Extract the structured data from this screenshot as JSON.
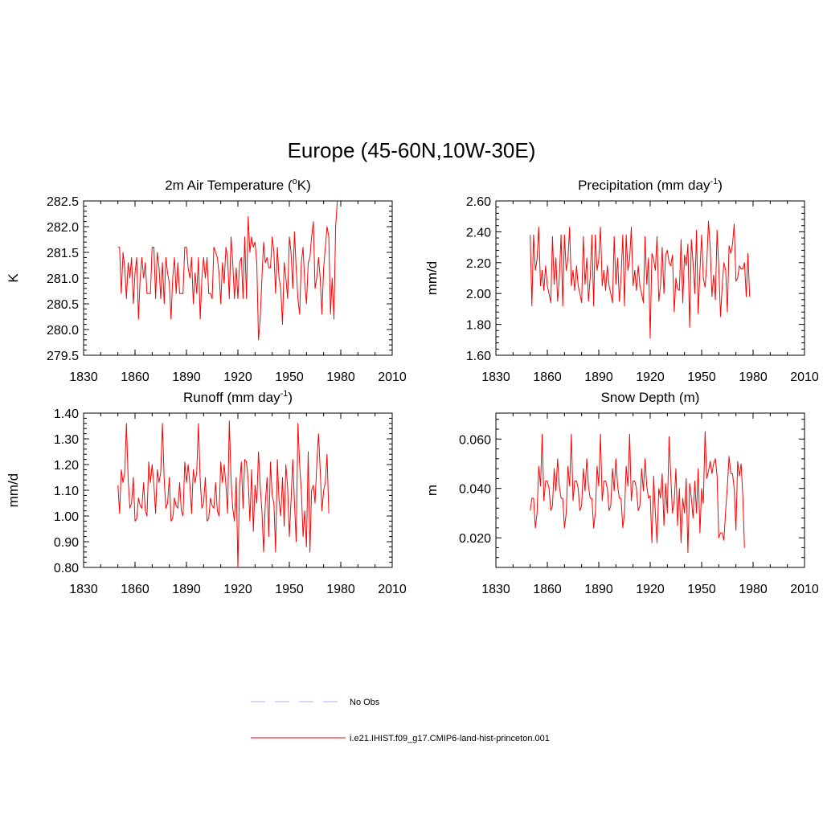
{
  "figure": {
    "title": "Europe (45-60N,10W-30E)"
  },
  "legend": [
    {
      "label": "No Obs",
      "color": "#aab0ff",
      "dash": true
    },
    {
      "label": "i.e21.IHIST.f09_g17.CMIP6-land-hist-princeton.001",
      "color": "#ff0000",
      "dash": false
    }
  ],
  "chart_data": [
    {
      "type": "line",
      "title": "2m Air Temperature (oK)",
      "title_parts": {
        "pre": "2m Air Temperature (",
        "sup": "o",
        "post": "K)"
      },
      "ylabel": "K",
      "xlim": [
        1830,
        2010
      ],
      "ylim": [
        279.5,
        282.5
      ],
      "xticks": [
        "1830",
        "1860",
        "1890",
        "1920",
        "1950",
        "1980",
        "2010"
      ],
      "yticks": [
        "279.5",
        "280.0",
        "280.5",
        "281.0",
        "281.5",
        "282.0",
        "282.5"
      ],
      "series": [
        {
          "color": "#ff0000",
          "x_start": 1850,
          "values": [
            281.6,
            281.6,
            280.7,
            281.5,
            281.2,
            280.6,
            281.3,
            281.0,
            281.4,
            280.5,
            281.1,
            281.4,
            280.2,
            281.0,
            281.4,
            281.0,
            281.3,
            280.7,
            280.7,
            280.7,
            281.6,
            281.6,
            280.6,
            281.5,
            281.2,
            280.6,
            281.3,
            280.5,
            281.4,
            281.1,
            280.9,
            280.2,
            281.0,
            281.4,
            280.7,
            281.3,
            280.7,
            280.7,
            280.7,
            281.6,
            281.6,
            281.2,
            281.0,
            281.4,
            280.5,
            281.1,
            280.7,
            281.4,
            280.2,
            281.0,
            281.4,
            281.0,
            281.4,
            280.7,
            280.7,
            280.6,
            281.6,
            281.5,
            281.4,
            281.1,
            280.5,
            281.3,
            280.9,
            281.6,
            281.4,
            280.6,
            281.8,
            281.3,
            280.6,
            281.2,
            280.6,
            281.3,
            281.4,
            280.6,
            281.8,
            280.6,
            282.2,
            281.5,
            281.8,
            281.6,
            281.7,
            281.3,
            279.8,
            280.2,
            281.0,
            281.7,
            281.3,
            281.4,
            281.2,
            281.2,
            281.8,
            281.5,
            280.7,
            281.6,
            281.0,
            280.8,
            280.1,
            281.3,
            281.0,
            280.6,
            281.8,
            281.5,
            280.8,
            281.9,
            281.2,
            280.6,
            280.3,
            281.3,
            281.6,
            280.9,
            280.5,
            281.3,
            281.4,
            281.8,
            282.1,
            280.8,
            281.0,
            281.4,
            281.0,
            280.3,
            281.2,
            281.6,
            282.0,
            281.8,
            280.3,
            281.0,
            280.2,
            282.0,
            282.5
          ]
        }
      ]
    },
    {
      "type": "line",
      "title": "Precipitation (mm day-1)",
      "title_parts": {
        "pre": "Precipitation (mm day",
        "sup": "-1",
        "post": ")"
      },
      "ylabel": "mm/d",
      "xlim": [
        1830,
        2010
      ],
      "ylim": [
        1.6,
        2.6
      ],
      "xticks": [
        "1830",
        "1860",
        "1890",
        "1920",
        "1950",
        "1980",
        "2010"
      ],
      "yticks": [
        "1.60",
        "1.80",
        "2.00",
        "2.20",
        "2.40",
        "2.60"
      ],
      "series": [
        {
          "color": "#ff0000",
          "x_start": 1850,
          "values": [
            2.38,
            1.92,
            2.38,
            2.15,
            2.22,
            2.43,
            2.05,
            2.15,
            2.02,
            2.18,
            2.05,
            2.0,
            1.94,
            2.37,
            2.06,
            2.23,
            1.95,
            2.1,
            2.38,
            1.92,
            2.38,
            2.15,
            2.22,
            2.43,
            2.05,
            2.15,
            2.02,
            2.18,
            2.05,
            2.0,
            1.94,
            2.37,
            2.06,
            2.23,
            1.95,
            2.1,
            2.38,
            1.92,
            2.38,
            2.15,
            2.22,
            2.43,
            2.05,
            2.15,
            2.02,
            2.18,
            2.05,
            2.0,
            1.94,
            2.37,
            2.06,
            2.23,
            1.95,
            2.1,
            2.38,
            1.92,
            2.38,
            2.15,
            2.22,
            2.43,
            2.05,
            2.15,
            2.02,
            2.18,
            2.05,
            2.0,
            1.94,
            2.37,
            2.06,
            2.23,
            1.71,
            2.26,
            2.22,
            2.15,
            2.37,
            1.95,
            2.05,
            2.3,
            2.0,
            2.25,
            2.28,
            2.2,
            2.18,
            2.25,
            1.88,
            2.1,
            2.03,
            2.02,
            2.35,
            1.94,
            2.25,
            2.18,
            2.32,
            1.78,
            2.35,
            2.2,
            2.0,
            2.41,
            1.87,
            2.15,
            2.38,
            2.1,
            2.04,
            2.2,
            2.47,
            2.3,
            1.98,
            2.12,
            1.96,
            2.41,
            2.17,
            1.85,
            2.05,
            2.2,
            2.15,
            1.88,
            2.31,
            2.26,
            2.32,
            2.45,
            2.08,
            2.1,
            2.18,
            2.16,
            2.16,
            2.2,
            1.98,
            2.26,
            1.98
          ]
        }
      ]
    },
    {
      "type": "line",
      "title": "Runoff (mm day-1)",
      "title_parts": {
        "pre": "Runoff (mm day",
        "sup": "-1",
        "post": ")"
      },
      "ylabel": "mm/d",
      "xlim": [
        1830,
        2010
      ],
      "ylim": [
        0.8,
        1.4
      ],
      "xticks": [
        "1830",
        "1860",
        "1890",
        "1920",
        "1950",
        "1980",
        "2010"
      ],
      "yticks": [
        "0.80",
        "0.90",
        "1.00",
        "1.10",
        "1.20",
        "1.30",
        "1.40"
      ],
      "series": [
        {
          "color": "#ff0000",
          "x_start": 1850,
          "values": [
            1.12,
            1.01,
            1.18,
            1.13,
            1.17,
            1.36,
            1.14,
            1.03,
            1.05,
            1.15,
            0.98,
            0.99,
            1.07,
            1.04,
            1.03,
            1.13,
            1.02,
            1.0,
            1.21,
            1.13,
            1.2,
            1.12,
            1.01,
            1.18,
            1.13,
            1.17,
            1.36,
            1.14,
            1.03,
            1.05,
            1.15,
            0.98,
            0.99,
            1.07,
            1.04,
            1.03,
            1.13,
            1.02,
            1.0,
            1.21,
            1.13,
            1.2,
            1.12,
            1.01,
            1.18,
            1.13,
            1.17,
            1.36,
            1.14,
            1.03,
            1.05,
            1.15,
            0.98,
            0.99,
            1.07,
            1.04,
            1.03,
            1.13,
            1.02,
            1.0,
            1.21,
            1.13,
            1.2,
            1.12,
            1.01,
            1.37,
            1.14,
            1.03,
            0.98,
            1.15,
            0.8,
            1.12,
            1.21,
            1.03,
            1.22,
            1.21,
            1.14,
            0.98,
            1.18,
            0.94,
            1.12,
            1.05,
            1.25,
            1.12,
            1.02,
            0.86,
            1.05,
            1.15,
            0.92,
            1.21,
            1.08,
            1.05,
            0.86,
            1.22,
            1.06,
            1.0,
            1.15,
            0.96,
            1.2,
            1.11,
            0.92,
            1.06,
            1.22,
            1.05,
            0.9,
            1.36,
            1.2,
            1.1,
            0.92,
            1.02,
            0.88,
            1.25,
            0.86,
            1.1,
            1.12,
            1.05,
            1.2,
            1.32,
            1.18,
            1.02,
            1.1,
            1.13,
            1.24,
            1.01
          ]
        }
      ]
    },
    {
      "type": "line",
      "title": "Snow Depth (m)",
      "title_parts": {
        "pre": "Snow Depth (m)",
        "sup": "",
        "post": ""
      },
      "ylabel": "m",
      "xlim": [
        1830,
        2010
      ],
      "ylim": [
        0.008,
        0.0705
      ],
      "xticks": [
        "1830",
        "1860",
        "1890",
        "1920",
        "1950",
        "1980",
        "2010"
      ],
      "yticks": [
        "0.020",
        "0.040",
        "0.060"
      ],
      "ytick_values": [
        0.02,
        0.04,
        0.06
      ],
      "series": [
        {
          "color": "#ff0000",
          "x_start": 1850,
          "values": [
            0.031,
            0.036,
            0.036,
            0.024,
            0.03,
            0.049,
            0.041,
            0.062,
            0.035,
            0.043,
            0.043,
            0.04,
            0.031,
            0.033,
            0.048,
            0.039,
            0.052,
            0.041,
            0.036,
            0.036,
            0.024,
            0.03,
            0.049,
            0.041,
            0.062,
            0.035,
            0.043,
            0.043,
            0.04,
            0.031,
            0.033,
            0.048,
            0.039,
            0.052,
            0.041,
            0.036,
            0.036,
            0.024,
            0.03,
            0.049,
            0.041,
            0.062,
            0.035,
            0.043,
            0.043,
            0.04,
            0.031,
            0.033,
            0.048,
            0.039,
            0.052,
            0.041,
            0.036,
            0.036,
            0.024,
            0.03,
            0.049,
            0.041,
            0.062,
            0.035,
            0.043,
            0.043,
            0.04,
            0.031,
            0.033,
            0.048,
            0.039,
            0.052,
            0.041,
            0.036,
            0.037,
            0.018,
            0.045,
            0.03,
            0.018,
            0.04,
            0.036,
            0.046,
            0.025,
            0.042,
            0.03,
            0.061,
            0.045,
            0.03,
            0.035,
            0.048,
            0.025,
            0.04,
            0.018,
            0.036,
            0.03,
            0.044,
            0.014,
            0.042,
            0.036,
            0.028,
            0.043,
            0.03,
            0.048,
            0.022,
            0.04,
            0.034,
            0.063,
            0.044,
            0.047,
            0.051,
            0.046,
            0.05,
            0.052,
            0.045,
            0.02,
            0.022,
            0.022,
            0.019,
            0.031,
            0.041,
            0.053,
            0.046,
            0.046,
            0.04,
            0.023,
            0.051,
            0.045,
            0.05,
            0.037,
            0.016
          ]
        }
      ]
    }
  ]
}
